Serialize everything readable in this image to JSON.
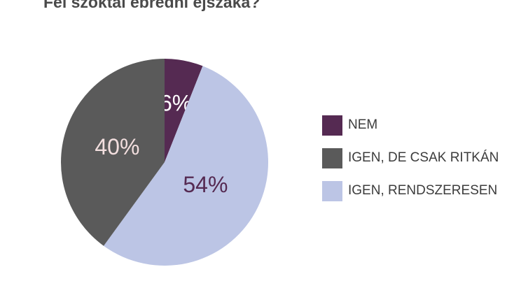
{
  "chart_data": {
    "type": "pie",
    "title": "Fel szoktál ébredni éjszaka?",
    "slices": [
      {
        "name": "NEM",
        "value": 6,
        "label": "6%",
        "color": "#552a52",
        "label_color": "#ffffff"
      },
      {
        "name": "IGEN, RENDSZERESEN",
        "value": 54,
        "label": "54%",
        "color": "#bcc5e5",
        "label_color": "#552a52"
      },
      {
        "name": "IGEN, DE CSAK RITKÁN",
        "value": 40,
        "label": "40%",
        "color": "#5a5a5a",
        "label_color": "#f2dede"
      }
    ],
    "legend": {
      "placement": "right",
      "items": [
        {
          "name": "NEM",
          "color": "#552a52"
        },
        {
          "name": "IGEN, DE CSAK RITKÁN",
          "color": "#5a5a5a"
        },
        {
          "name": "IGEN, RENDSZERESEN",
          "color": "#bcc5e5"
        }
      ]
    }
  }
}
